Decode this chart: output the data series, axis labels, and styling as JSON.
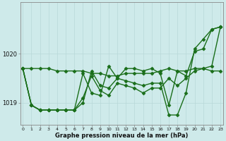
{
  "xlabel": "Graphe pression niveau de la mer (hPa)",
  "bg_color": "#ceeaea",
  "grid_color_major": "#b8d8d8",
  "grid_color_minor": "#d4ecec",
  "line_color": "#1a6e1a",
  "marker": "D",
  "markersize": 2.5,
  "linewidth": 1.0,
  "x_ticks": [
    0,
    1,
    2,
    3,
    4,
    5,
    6,
    7,
    8,
    9,
    10,
    11,
    12,
    13,
    14,
    15,
    16,
    17,
    18,
    19,
    20,
    21,
    22,
    23
  ],
  "y_ticks": [
    1019,
    1020
  ],
  "ylim": [
    1018.55,
    1021.05
  ],
  "xlim": [
    -0.3,
    23.3
  ],
  "series": [
    [
      1019.7,
      1019.7,
      1019.7,
      1019.7,
      1019.65,
      1019.65,
      1019.65,
      1019.65,
      1019.6,
      1019.6,
      1019.55,
      1019.55,
      1019.6,
      1019.6,
      1019.6,
      1019.6,
      1019.65,
      1019.7,
      1019.65,
      1019.65,
      1019.7,
      1019.7,
      1019.65,
      1019.65
    ],
    [
      1019.7,
      1018.95,
      1018.85,
      1018.85,
      1018.85,
      1018.85,
      1018.85,
      1019.6,
      1019.2,
      1019.15,
      1019.75,
      1019.5,
      1019.7,
      1019.7,
      1019.65,
      1019.7,
      1019.6,
      1018.95,
      1019.65,
      1019.55,
      1020.05,
      1020.1,
      1020.5,
      1020.55
    ],
    [
      1019.7,
      1018.95,
      1018.85,
      1018.85,
      1018.85,
      1018.85,
      1018.85,
      1019.1,
      1019.55,
      1019.25,
      1019.15,
      1019.4,
      1019.35,
      1019.3,
      1019.2,
      1019.3,
      1019.3,
      1019.5,
      1019.35,
      1019.5,
      1019.65,
      1019.7,
      1019.75,
      1020.55
    ],
    [
      1019.7,
      1018.95,
      1018.85,
      1018.85,
      1018.85,
      1018.85,
      1018.85,
      1019.0,
      1019.65,
      1019.35,
      1019.3,
      1019.5,
      1019.45,
      1019.4,
      1019.35,
      1019.4,
      1019.4,
      1018.75,
      1018.75,
      1019.2,
      1020.1,
      1020.3,
      1020.5,
      1020.55
    ]
  ]
}
